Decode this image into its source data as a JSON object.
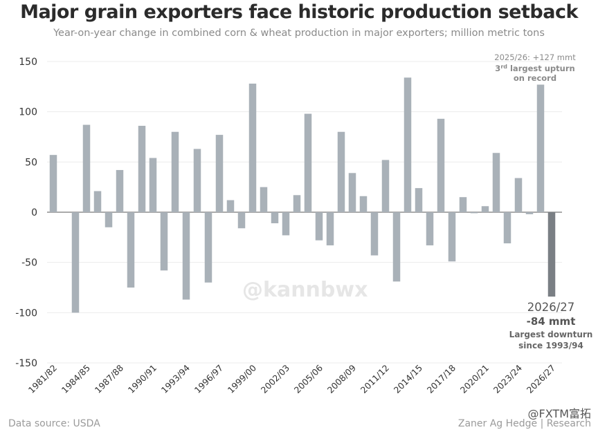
{
  "header": {
    "title": "Major grain exporters face historic production setback",
    "subtitle": "Year-on-year change in combined corn & wheat production in major exporters; million metric tons"
  },
  "chart_data": {
    "type": "bar",
    "ylim": [
      -150,
      150
    ],
    "yticks": [
      150,
      100,
      50,
      0,
      -50,
      -100,
      -150
    ],
    "grid": true,
    "categories": [
      "1981/82",
      "1982/83",
      "1983/84",
      "1984/85",
      "1985/86",
      "1986/87",
      "1987/88",
      "1988/89",
      "1989/90",
      "1990/91",
      "1991/92",
      "1992/93",
      "1993/94",
      "1994/95",
      "1995/96",
      "1996/97",
      "1997/98",
      "1998/99",
      "1999/00",
      "2000/01",
      "2001/02",
      "2002/03",
      "2003/04",
      "2004/05",
      "2005/06",
      "2006/07",
      "2007/08",
      "2008/09",
      "2009/10",
      "2010/11",
      "2011/12",
      "2012/13",
      "2013/14",
      "2014/15",
      "2015/16",
      "2016/17",
      "2017/18",
      "2018/19",
      "2019/20",
      "2020/21",
      "2021/22",
      "2022/23",
      "2023/24",
      "2024/25",
      "2025/26",
      "2026/27"
    ],
    "values": [
      57,
      0,
      -100,
      87,
      21,
      -15,
      42,
      -75,
      86,
      54,
      -58,
      80,
      -87,
      63,
      -70,
      77,
      12,
      -16,
      128,
      25,
      -11,
      -23,
      17,
      98,
      -28,
      -33,
      80,
      39,
      16,
      -43,
      52,
      -69,
      134,
      24,
      -33,
      93,
      -49,
      15,
      -1,
      6,
      59,
      -31,
      34,
      -2,
      127,
      -84
    ],
    "xtick_labels": [
      "1981/82",
      "1984/85",
      "1987/88",
      "1990/91",
      "1993/94",
      "1996/97",
      "1999/00",
      "2002/03",
      "2005/06",
      "2008/09",
      "2011/12",
      "2014/15",
      "2017/18",
      "2020/21",
      "2023/24",
      "2026/27"
    ],
    "bar_color": "#a9b1b8",
    "highlight_color": "#7a7f84",
    "highlight_index": 45
  },
  "annotations": {
    "upturn": {
      "line1": "2025/26: +127 mmt",
      "line2_sup_prefix": "3",
      "line2_sup": "rd",
      "line2_rest": " largest upturn",
      "line3": "on record"
    },
    "downturn": {
      "season": "2026/27",
      "value": "-84 mmt",
      "line3": "Largest downturn",
      "line4": "since 1993/94"
    }
  },
  "footer": {
    "source": "Data source: USDA",
    "credit": "Zaner Ag Hedge | Research",
    "logo_text": "@FXTM富拓"
  },
  "watermark": "@kannbwx"
}
